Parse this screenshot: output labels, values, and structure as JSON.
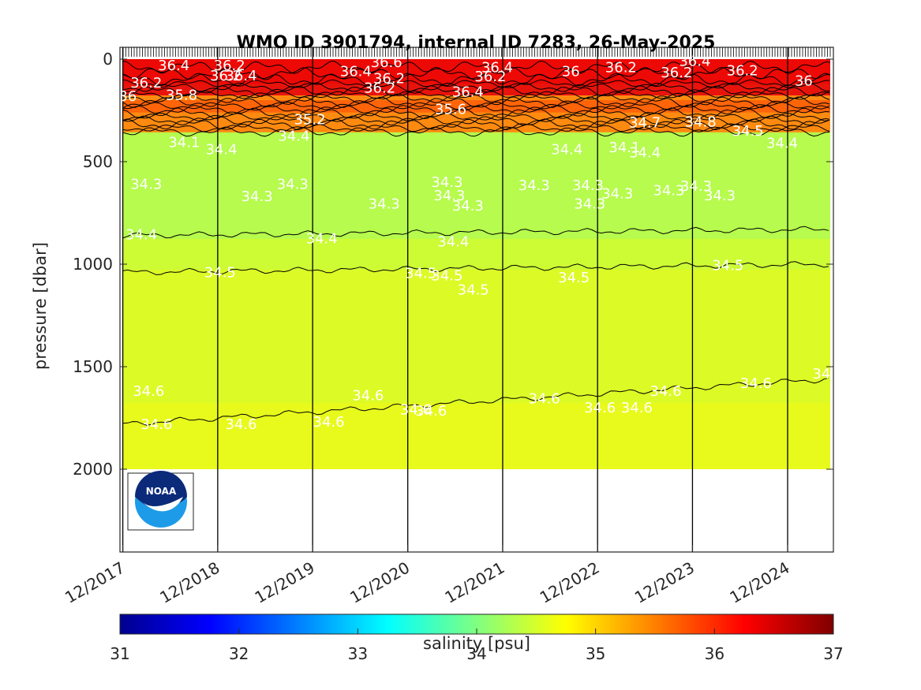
{
  "chart_data": {
    "type": "heatmap",
    "title": "WMO ID 3901794, internal ID 7283, 26-May-2025",
    "ylabel": "pressure [dbar]",
    "ylim": [
      0,
      2400
    ],
    "y_reversed": true,
    "y_ticks": [
      0,
      500,
      1000,
      1500,
      2000
    ],
    "x_ticks": [
      "12/2017",
      "12/2018",
      "12/2019",
      "12/2020",
      "12/2021",
      "12/2022",
      "12/2023",
      "12/2024"
    ],
    "xlim": [
      "2017-11-20",
      "2025-05-26"
    ],
    "x_tick_dates": [
      "2017-12-01",
      "2018-12-01",
      "2019-12-01",
      "2020-12-01",
      "2021-12-01",
      "2022-12-01",
      "2023-12-01",
      "2024-12-01"
    ],
    "colorbar": {
      "label": "salinity [psu]",
      "range": [
        31,
        37
      ],
      "ticks": [
        "31",
        "32",
        "33",
        "34",
        "35",
        "36",
        "37"
      ],
      "colormap": "jet"
    },
    "profile_layers": [
      {
        "from": 0,
        "to": 200,
        "salinity_range": "36.0-36.6",
        "color": "#e8140c"
      },
      {
        "from": 200,
        "to": 380,
        "salinity_range": "34.7-35.8",
        "color": "#ff8a10"
      },
      {
        "from": 380,
        "to": 900,
        "salinity_range": "34.3-34.4",
        "color": "#b6fb4d"
      },
      {
        "from": 900,
        "to": 1050,
        "salinity_range": "34.4-34.5",
        "color": "#cdfb34"
      },
      {
        "from": 1050,
        "to": 1700,
        "salinity_range": "34.5-34.6",
        "color": "#dcfa26"
      },
      {
        "from": 1700,
        "to": 2000,
        "salinity_range": "34.6",
        "color": "#e8fa1c"
      }
    ],
    "contour_labels": [
      {
        "text": "36.4",
        "date": "2018-06-15",
        "p": 30
      },
      {
        "text": "36.2",
        "date": "2018-03-01",
        "p": 115
      },
      {
        "text": "36",
        "date": "2017-12-20",
        "p": 180
      },
      {
        "text": "35.8",
        "date": "2018-07-15",
        "p": 175
      },
      {
        "text": "36.2",
        "date": "2019-01-15",
        "p": 30
      },
      {
        "text": "36.2",
        "date": "2019-01-01",
        "p": 80
      },
      {
        "text": "36.4",
        "date": "2019-03-01",
        "p": 80
      },
      {
        "text": "36.4",
        "date": "2020-05-15",
        "p": 60
      },
      {
        "text": "36.6",
        "date": "2020-09-10",
        "p": 15
      },
      {
        "text": "36.2",
        "date": "2020-09-20",
        "p": 95
      },
      {
        "text": "36.2",
        "date": "2020-08-15",
        "p": 140
      },
      {
        "text": "36.4",
        "date": "2021-07-20",
        "p": 160
      },
      {
        "text": "36.4",
        "date": "2021-11-10",
        "p": 40
      },
      {
        "text": "36.2",
        "date": "2021-10-15",
        "p": 85
      },
      {
        "text": "35.6",
        "date": "2021-05-15",
        "p": 245
      },
      {
        "text": "35.2",
        "date": "2019-11-20",
        "p": 295
      },
      {
        "text": "34.4",
        "date": "2019-09-20",
        "p": 375
      },
      {
        "text": "36",
        "date": "2022-08-20",
        "p": 60
      },
      {
        "text": "36.2",
        "date": "2023-03-01",
        "p": 40
      },
      {
        "text": "36.2",
        "date": "2023-10-01",
        "p": 65
      },
      {
        "text": "36.4",
        "date": "2023-12-10",
        "p": 10
      },
      {
        "text": "36.2",
        "date": "2024-06-10",
        "p": 55
      },
      {
        "text": "36",
        "date": "2025-02-01",
        "p": 105
      },
      {
        "text": "34.7",
        "date": "2023-06-01",
        "p": 310
      },
      {
        "text": "34.8",
        "date": "2024-01-01",
        "p": 305
      },
      {
        "text": "34.5",
        "date": "2024-07-01",
        "p": 350
      },
      {
        "text": "34.4",
        "date": "2024-11-10",
        "p": 410
      },
      {
        "text": "34.1",
        "date": "2018-07-25",
        "p": 405
      },
      {
        "text": "34.4",
        "date": "2018-12-15",
        "p": 440
      },
      {
        "text": "34.4",
        "date": "2022-08-05",
        "p": 440
      },
      {
        "text": "34.1",
        "date": "2023-03-15",
        "p": 430
      },
      {
        "text": "34.4",
        "date": "2023-06-01",
        "p": 455
      },
      {
        "text": "34.3",
        "date": "2018-03-01",
        "p": 610
      },
      {
        "text": "34.3",
        "date": "2019-05-01",
        "p": 670
      },
      {
        "text": "34.3",
        "date": "2019-09-15",
        "p": 610
      },
      {
        "text": "34.3",
        "date": "2020-09-01",
        "p": 705
      },
      {
        "text": "34.3",
        "date": "2021-05-01",
        "p": 600
      },
      {
        "text": "34.3",
        "date": "2021-05-10",
        "p": 665
      },
      {
        "text": "34.3",
        "date": "2021-07-20",
        "p": 715
      },
      {
        "text": "34.3",
        "date": "2022-04-01",
        "p": 615
      },
      {
        "text": "34.3",
        "date": "2022-10-25",
        "p": 615
      },
      {
        "text": "34.3",
        "date": "2022-11-01",
        "p": 705
      },
      {
        "text": "34.3",
        "date": "2023-02-15",
        "p": 655
      },
      {
        "text": "34.3",
        "date": "2023-09-01",
        "p": 640
      },
      {
        "text": "34.3",
        "date": "2023-12-15",
        "p": 620
      },
      {
        "text": "34.3",
        "date": "2024-03-15",
        "p": 665
      },
      {
        "text": "34.4",
        "date": "2018-02-10",
        "p": 855
      },
      {
        "text": "34.4",
        "date": "2020-01-05",
        "p": 875
      },
      {
        "text": "34.4",
        "date": "2021-05-25",
        "p": 890
      },
      {
        "text": "34.5",
        "date": "2018-12-10",
        "p": 1040
      },
      {
        "text": "34.5",
        "date": "2021-01-20",
        "p": 1045
      },
      {
        "text": "34.5",
        "date": "2021-05-01",
        "p": 1055
      },
      {
        "text": "34.5",
        "date": "2021-08-10",
        "p": 1125
      },
      {
        "text": "34.5",
        "date": "2022-09-01",
        "p": 1065
      },
      {
        "text": "34.5",
        "date": "2024-04-15",
        "p": 1005
      },
      {
        "text": "34.6",
        "date": "2018-03-10",
        "p": 1620
      },
      {
        "text": "34.6",
        "date": "2018-04-10",
        "p": 1780
      },
      {
        "text": "34.6",
        "date": "2019-03-01",
        "p": 1780
      },
      {
        "text": "34.6",
        "date": "2020-02-01",
        "p": 1770
      },
      {
        "text": "34.6",
        "date": "2020-07-01",
        "p": 1640
      },
      {
        "text": "34.6",
        "date": "2021-01-01",
        "p": 1710
      },
      {
        "text": "34.6",
        "date": "2021-03-01",
        "p": 1715
      },
      {
        "text": "34.6",
        "date": "2022-05-10",
        "p": 1655
      },
      {
        "text": "34.6",
        "date": "2022-12-10",
        "p": 1700
      },
      {
        "text": "34.6",
        "date": "2023-05-01",
        "p": 1700
      },
      {
        "text": "34.6",
        "date": "2023-08-20",
        "p": 1620
      },
      {
        "text": "34.6",
        "date": "2024-08-01",
        "p": 1580
      },
      {
        "text": "34",
        "date": "2025-04-10",
        "p": 1535
      }
    ]
  }
}
